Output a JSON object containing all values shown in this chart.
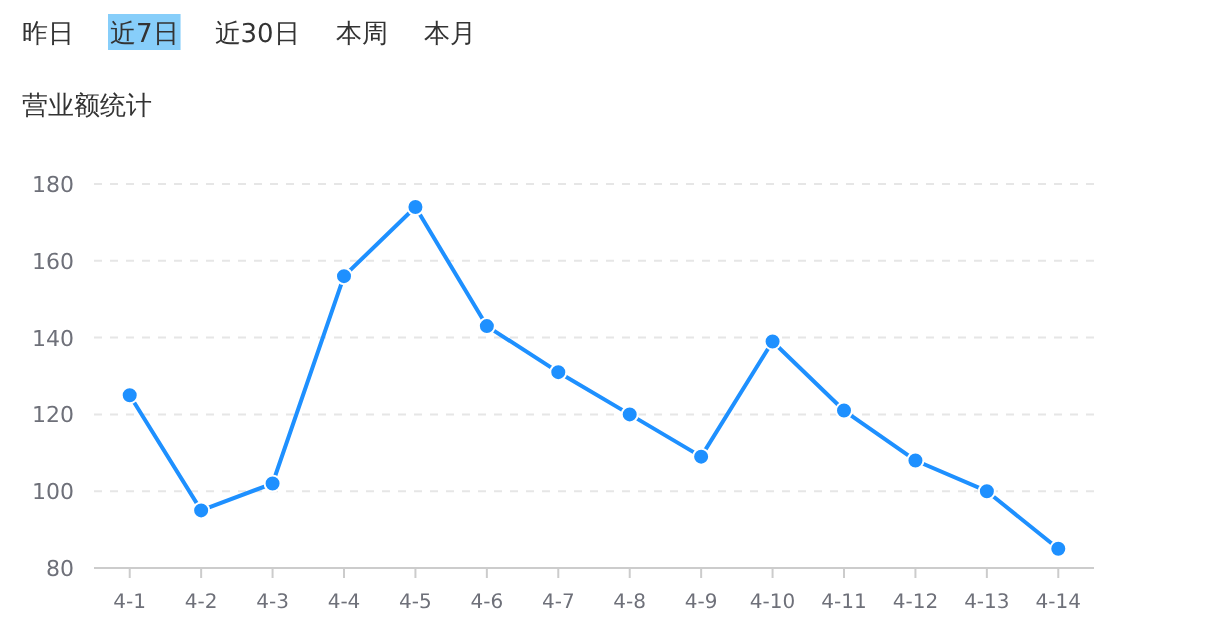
{
  "chart_data": {
    "type": "line",
    "title": "营业额统计",
    "annotations": [
      "昨日",
      "近7日",
      "近30日",
      "本周",
      "本月"
    ],
    "categories": [
      "4-1",
      "4-2",
      "4-3",
      "4-4",
      "4-5",
      "4-6",
      "4-7",
      "4-8",
      "4-9",
      "4-10",
      "4-11",
      "4-12",
      "4-13",
      "4-14"
    ],
    "values": [
      125,
      95,
      102,
      156,
      174,
      143,
      131,
      120,
      109,
      139,
      121,
      108,
      100,
      85
    ],
    "color": "#1e90ff",
    "ylim": [
      80,
      180
    ],
    "yticks": [
      80,
      100,
      120,
      140,
      160,
      180
    ],
    "grid": "y",
    "marker": "circle",
    "line_style": "solid"
  }
}
